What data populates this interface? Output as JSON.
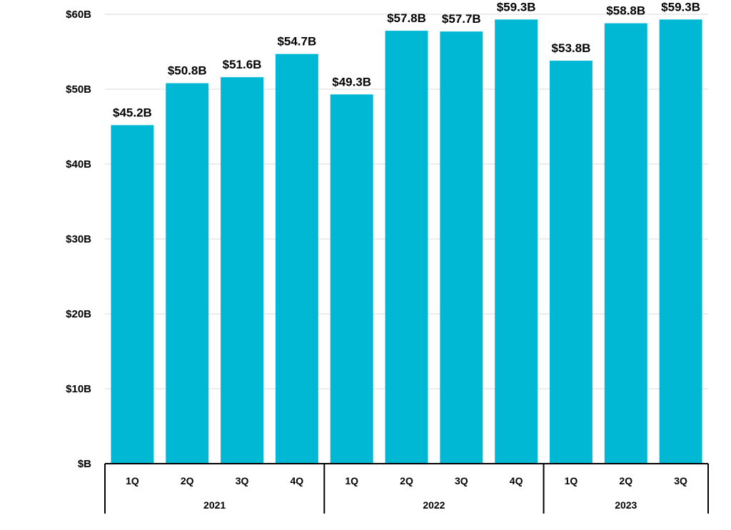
{
  "chart_data": {
    "type": "bar",
    "title": "",
    "xlabel": "",
    "ylabel": "",
    "ylim": [
      0,
      60
    ],
    "grid": true,
    "bar_color": "#00b8d4",
    "y_ticks": [
      {
        "value": 0,
        "label": "$B"
      },
      {
        "value": 10,
        "label": "$10B"
      },
      {
        "value": 20,
        "label": "$20B"
      },
      {
        "value": 30,
        "label": "$30B"
      },
      {
        "value": 40,
        "label": "$40B"
      },
      {
        "value": 50,
        "label": "$50B"
      },
      {
        "value": 60,
        "label": "$60B"
      }
    ],
    "groups": [
      {
        "year": "2021",
        "quarters": [
          "1Q",
          "2Q",
          "3Q",
          "4Q"
        ]
      },
      {
        "year": "2022",
        "quarters": [
          "1Q",
          "2Q",
          "3Q",
          "4Q"
        ]
      },
      {
        "year": "2023",
        "quarters": [
          "1Q",
          "2Q",
          "3Q"
        ]
      }
    ],
    "values": [
      45.2,
      50.8,
      51.6,
      54.7,
      49.3,
      57.8,
      57.7,
      59.3,
      53.8,
      58.8,
      59.3
    ],
    "data_labels": [
      "$45.2B",
      "$50.8B",
      "$51.6B",
      "$54.7B",
      "$49.3B",
      "$57.8B",
      "$57.7B",
      "$59.3B",
      "$53.8B",
      "$58.8B",
      "$59.3B"
    ]
  }
}
